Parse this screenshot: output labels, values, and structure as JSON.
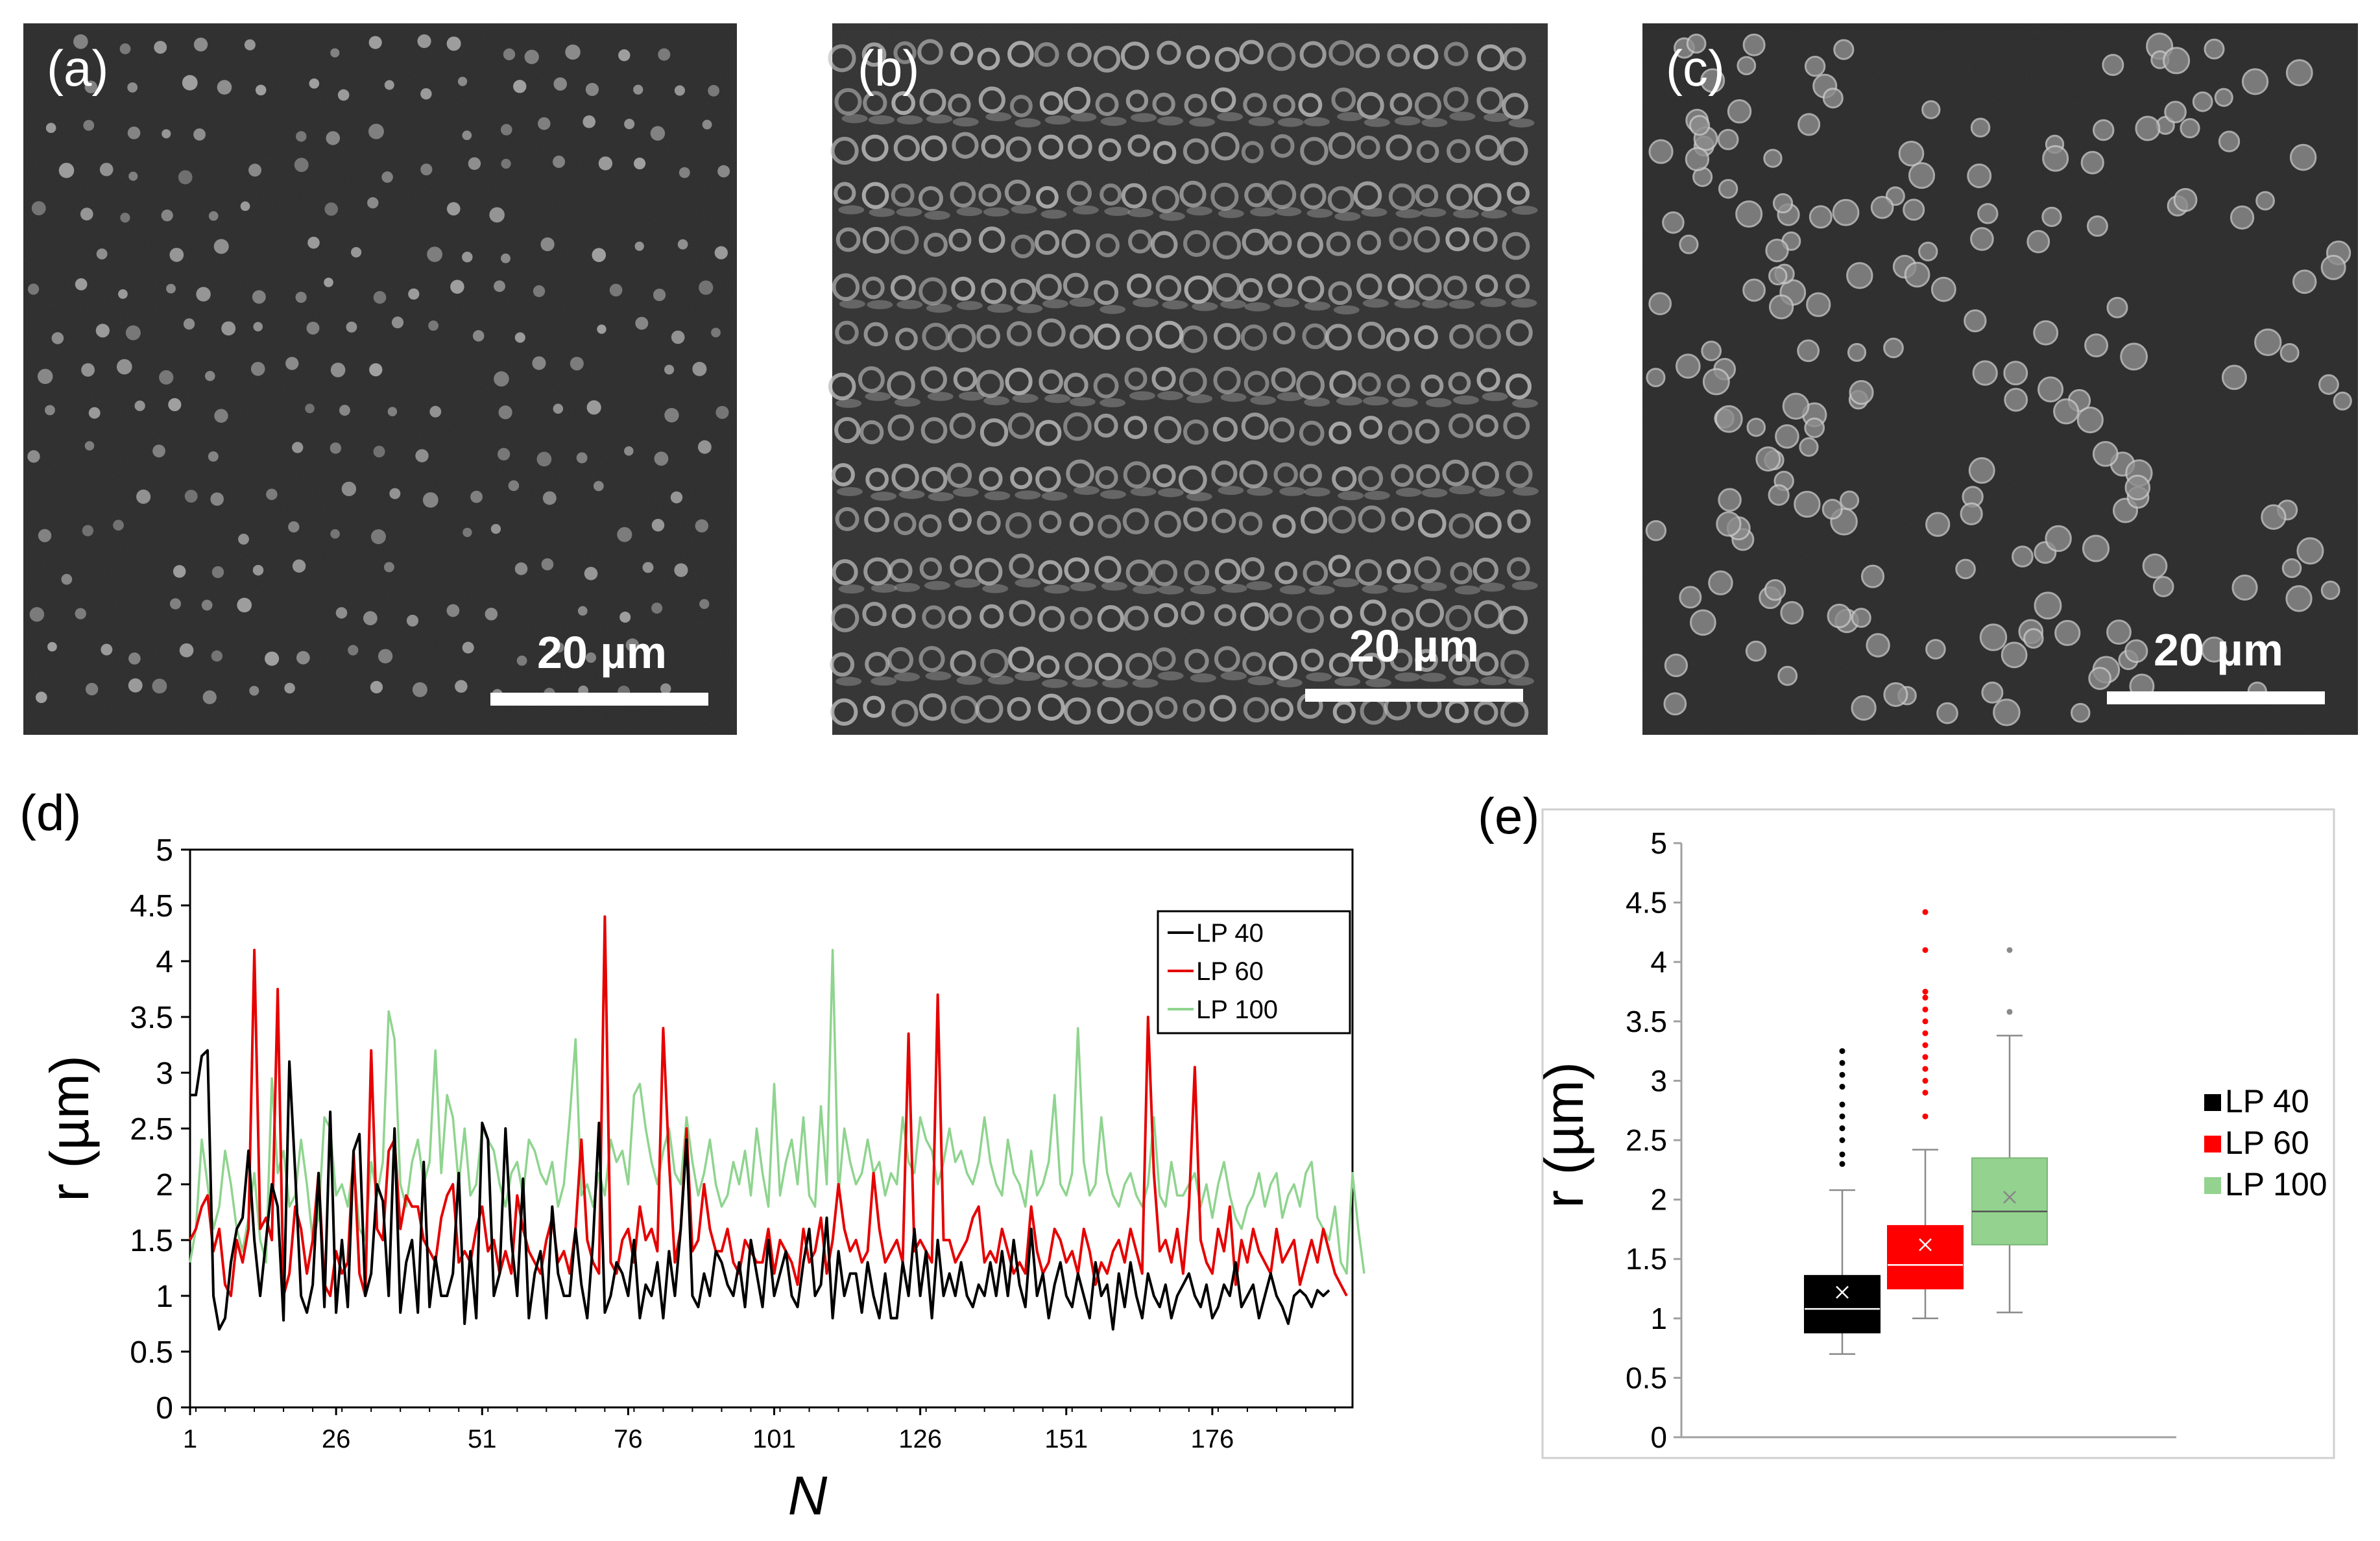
{
  "panels": {
    "a": {
      "label": "(a)",
      "scale_bar": "20 µm",
      "spot_density": "sparse"
    },
    "b": {
      "label": "(b)",
      "scale_bar": "20 µm",
      "spot_density": "dense-rows"
    },
    "c": {
      "label": "(c)",
      "scale_bar": "20 µm",
      "spot_density": "medium"
    }
  },
  "colors": {
    "lp40": "#000000",
    "lp60": "#e60000",
    "lp100": "#8fd48f",
    "lp100_box": "#93d38f",
    "sem_bg": "#2b2b2b",
    "spot": "#bdbdbd"
  },
  "chart_data": [
    {
      "id": "d",
      "label": "(d)",
      "type": "line",
      "xlabel": "N",
      "ylabel": "r (µm)",
      "ylim": [
        0,
        5
      ],
      "yticks": [
        "0",
        "0.5",
        "1",
        "1.5",
        "2",
        "2.5",
        "3",
        "3.5",
        "4",
        "4.5",
        "5"
      ],
      "xlim": [
        1,
        200
      ],
      "xticks": [
        "1",
        "26",
        "51",
        "76",
        "101",
        "126",
        "151",
        "176"
      ],
      "legend": {
        "position": "top-right",
        "entries": [
          "LP 40",
          "LP 60",
          "LP 100"
        ]
      },
      "series": [
        {
          "name": "LP 40",
          "color": "#000000",
          "values": [
            2.8,
            2.8,
            3.15,
            3.2,
            1.0,
            0.7,
            0.8,
            1.3,
            1.6,
            1.7,
            2.3,
            1.5,
            1.0,
            1.5,
            2.0,
            1.8,
            0.78,
            3.1,
            2.1,
            1.0,
            0.85,
            1.1,
            2.1,
            0.9,
            2.65,
            0.85,
            1.5,
            0.9,
            2.3,
            2.45,
            1.0,
            1.2,
            2.0,
            1.85,
            1.0,
            2.5,
            0.85,
            1.3,
            1.5,
            0.85,
            2.2,
            0.9,
            1.35,
            1.0,
            1.0,
            1.2,
            2.1,
            0.75,
            1.4,
            0.8,
            2.55,
            2.4,
            1.0,
            1.2,
            2.5,
            1.5,
            1.0,
            2.05,
            0.8,
            1.2,
            1.4,
            0.8,
            1.8,
            1.2,
            1.0,
            1.0,
            1.6,
            1.1,
            0.8,
            1.5,
            2.55,
            0.85,
            1.0,
            1.3,
            1.2,
            1.0,
            1.5,
            0.8,
            1.1,
            1.0,
            1.3,
            0.8,
            1.4,
            1.0,
            1.6,
            2.4,
            1.0,
            0.9,
            1.2,
            1.0,
            1.4,
            1.3,
            1.1,
            1.0,
            1.3,
            0.9,
            1.5,
            1.2,
            0.9,
            1.5,
            1.0,
            1.2,
            1.4,
            1.0,
            0.9,
            1.3,
            1.6,
            1.0,
            1.1,
            1.7,
            0.8,
            1.4,
            1.0,
            1.2,
            1.2,
            0.85,
            1.3,
            1.0,
            0.8,
            1.2,
            0.8,
            0.8,
            1.3,
            1.0,
            1.6,
            1.0,
            1.4,
            0.8,
            1.5,
            1.0,
            1.2,
            1.0,
            1.3,
            1.0,
            0.9,
            1.1,
            1.0,
            1.3,
            1.0,
            1.4,
            1.0,
            1.5,
            1.1,
            0.9,
            1.6,
            1.0,
            1.2,
            0.8,
            1.1,
            1.3,
            1.0,
            0.9,
            1.2,
            1.0,
            0.8,
            1.3,
            1.0,
            1.1,
            0.7,
            1.2,
            0.9,
            1.3,
            1.0,
            0.8,
            1.2,
            1.0,
            0.9,
            1.1,
            0.8,
            1.0,
            1.1,
            1.2,
            1.0,
            0.9,
            1.1,
            0.8,
            0.9,
            1.1,
            1.0,
            1.3,
            0.9,
            1.0,
            1.1,
            0.8,
            1.0,
            1.2,
            1.0,
            0.9,
            0.75,
            1.0,
            1.05,
            1.0,
            0.9,
            1.05,
            1.0,
            1.05
          ]
        },
        {
          "name": "LP 60",
          "color": "#e60000",
          "values": [
            1.5,
            1.6,
            1.8,
            1.9,
            1.4,
            1.6,
            1.1,
            1.0,
            1.5,
            1.3,
            1.6,
            4.1,
            1.6,
            1.7,
            1.5,
            3.75,
            1.0,
            1.2,
            1.8,
            1.6,
            1.2,
            1.5,
            2.1,
            1.1,
            1.0,
            1.4,
            1.2,
            1.3,
            2.3,
            1.2,
            1.0,
            3.2,
            1.6,
            1.5,
            2.3,
            2.4,
            1.6,
            1.9,
            1.8,
            1.8,
            1.5,
            1.4,
            1.3,
            1.7,
            1.9,
            2.0,
            1.3,
            1.4,
            1.3,
            1.6,
            1.8,
            1.4,
            1.5,
            1.2,
            1.4,
            1.2,
            1.9,
            1.6,
            1.4,
            1.3,
            1.2,
            1.5,
            1.7,
            1.3,
            1.4,
            1.2,
            1.6,
            2.4,
            1.5,
            1.3,
            1.2,
            4.4,
            1.3,
            1.2,
            1.5,
            1.6,
            1.3,
            1.8,
            1.5,
            1.6,
            1.4,
            3.4,
            2.2,
            1.3,
            1.6,
            2.5,
            1.4,
            1.5,
            2.0,
            1.6,
            1.4,
            1.4,
            1.6,
            1.3,
            1.2,
            1.5,
            1.4,
            1.3,
            1.3,
            1.6,
            1.2,
            1.5,
            1.4,
            1.3,
            1.1,
            1.6,
            1.3,
            1.4,
            1.7,
            1.2,
            1.5,
            2.0,
            1.6,
            1.4,
            1.5,
            1.3,
            1.4,
            2.1,
            1.6,
            1.3,
            1.4,
            1.5,
            1.3,
            3.35,
            1.4,
            1.5,
            1.4,
            1.3,
            3.7,
            1.5,
            1.5,
            1.3,
            1.4,
            1.5,
            1.7,
            1.8,
            1.3,
            1.4,
            1.3,
            1.6,
            1.4,
            1.2,
            1.3,
            1.2,
            1.8,
            1.4,
            1.2,
            1.3,
            1.6,
            1.5,
            1.3,
            1.4,
            1.2,
            1.6,
            1.4,
            1.1,
            1.3,
            1.2,
            1.4,
            1.5,
            1.3,
            1.6,
            1.4,
            1.2,
            3.5,
            2.1,
            1.4,
            1.5,
            1.3,
            1.6,
            1.2,
            1.8,
            3.05,
            1.5,
            1.3,
            1.2,
            1.6,
            1.4,
            1.8,
            1.1,
            1.5,
            1.3,
            1.6,
            1.4,
            1.3,
            1.2,
            1.6,
            1.3,
            1.4,
            1.5,
            1.1,
            1.3,
            1.5,
            1.3,
            1.6,
            1.4,
            1.2,
            1.1,
            1.0
          ]
        },
        {
          "name": "LP 100",
          "color": "#8fd48f",
          "values": [
            1.3,
            1.6,
            2.4,
            2.0,
            1.6,
            1.8,
            2.3,
            2.0,
            1.6,
            1.4,
            1.7,
            2.1,
            1.5,
            1.3,
            2.95,
            2.1,
            2.3,
            1.8,
            1.9,
            2.4,
            2.0,
            1.5,
            1.7,
            2.6,
            2.5,
            1.9,
            2.0,
            1.8,
            2.2,
            1.6,
            1.5,
            2.2,
            1.9,
            2.2,
            3.55,
            3.3,
            2.0,
            1.8,
            2.2,
            2.4,
            2.0,
            2.2,
            3.2,
            2.1,
            2.8,
            2.6,
            2.0,
            2.5,
            1.9,
            2.0,
            2.5,
            2.4,
            2.3,
            2.0,
            1.8,
            2.1,
            2.2,
            1.9,
            2.4,
            2.3,
            2.1,
            2.0,
            2.2,
            1.8,
            2.0,
            2.6,
            3.3,
            1.9,
            2.0,
            1.8,
            2.1,
            1.9,
            2.4,
            2.2,
            2.3,
            2.0,
            2.8,
            2.9,
            2.5,
            2.2,
            2.0,
            2.3,
            2.5,
            2.1,
            2.0,
            2.6,
            2.2,
            1.9,
            2.1,
            2.4,
            2.0,
            1.8,
            1.9,
            2.2,
            2.0,
            2.3,
            1.9,
            2.5,
            2.1,
            1.8,
            2.9,
            1.9,
            2.2,
            2.4,
            2.0,
            2.6,
            1.9,
            1.8,
            2.7,
            2.0,
            4.1,
            1.9,
            2.5,
            2.2,
            2.0,
            2.1,
            2.4,
            2.1,
            2.2,
            1.9,
            2.1,
            2.0,
            2.6,
            2.2,
            2.1,
            2.6,
            2.4,
            2.3,
            2.0,
            2.2,
            2.5,
            2.2,
            2.3,
            2.1,
            2.0,
            2.2,
            2.6,
            2.2,
            2.0,
            1.9,
            2.4,
            2.1,
            2.0,
            1.8,
            2.3,
            1.9,
            2.0,
            2.2,
            2.8,
            2.0,
            1.9,
            2.1,
            3.4,
            2.2,
            1.9,
            2.0,
            2.6,
            2.1,
            1.9,
            1.8,
            2.0,
            2.1,
            1.9,
            1.8,
            2.0,
            2.6,
            1.9,
            1.8,
            2.2,
            1.9,
            1.9,
            2.0,
            2.1,
            1.8,
            2.0,
            1.7,
            2.0,
            2.2,
            1.9,
            1.7,
            1.6,
            1.8,
            1.9,
            2.1,
            1.8,
            2.0,
            2.1,
            1.7,
            1.9,
            2.0,
            1.8,
            2.1,
            2.2,
            1.7,
            1.6,
            1.5,
            1.8,
            1.3,
            1.2,
            2.1,
            1.6,
            1.2
          ]
        }
      ]
    },
    {
      "id": "e",
      "label": "(e)",
      "type": "box",
      "ylabel": "r (µm)",
      "ylim": [
        0,
        5
      ],
      "yticks": [
        "0",
        "0.5",
        "1",
        "1.5",
        "2",
        "2.5",
        "3",
        "3.5",
        "4",
        "4.5",
        "5"
      ],
      "legend": {
        "position": "right",
        "entries": [
          "LP 40",
          "LP 60",
          "LP 100"
        ]
      },
      "boxes": [
        {
          "name": "LP 40",
          "color": "#000000",
          "median_color": "#ffffff",
          "mean_color": "#ffffff",
          "min": 0.7,
          "q1": 0.88,
          "median": 1.08,
          "q3": 1.36,
          "max": 2.08,
          "mean": 1.22,
          "outliers": [
            2.3,
            2.38,
            2.5,
            2.6,
            2.7,
            2.8,
            2.95,
            3.05,
            3.15,
            3.25
          ]
        },
        {
          "name": "LP 60",
          "color": "#ff0000",
          "median_color": "#ffffff",
          "mean_color": "#ffffff",
          "min": 1.0,
          "q1": 1.25,
          "median": 1.45,
          "q3": 1.78,
          "max": 2.42,
          "mean": 1.62,
          "outliers": [
            2.7,
            2.9,
            3.0,
            3.1,
            3.2,
            3.3,
            3.4,
            3.5,
            3.6,
            3.7,
            3.75,
            4.1,
            4.42
          ]
        },
        {
          "name": "LP 100",
          "color": "#93d38f",
          "median_color": "#555555",
          "mean_color": "#888888",
          "min": 1.05,
          "q1": 1.62,
          "median": 1.9,
          "q3": 2.35,
          "max": 3.38,
          "mean": 2.02,
          "outliers": [
            3.58,
            4.1
          ]
        }
      ]
    }
  ]
}
